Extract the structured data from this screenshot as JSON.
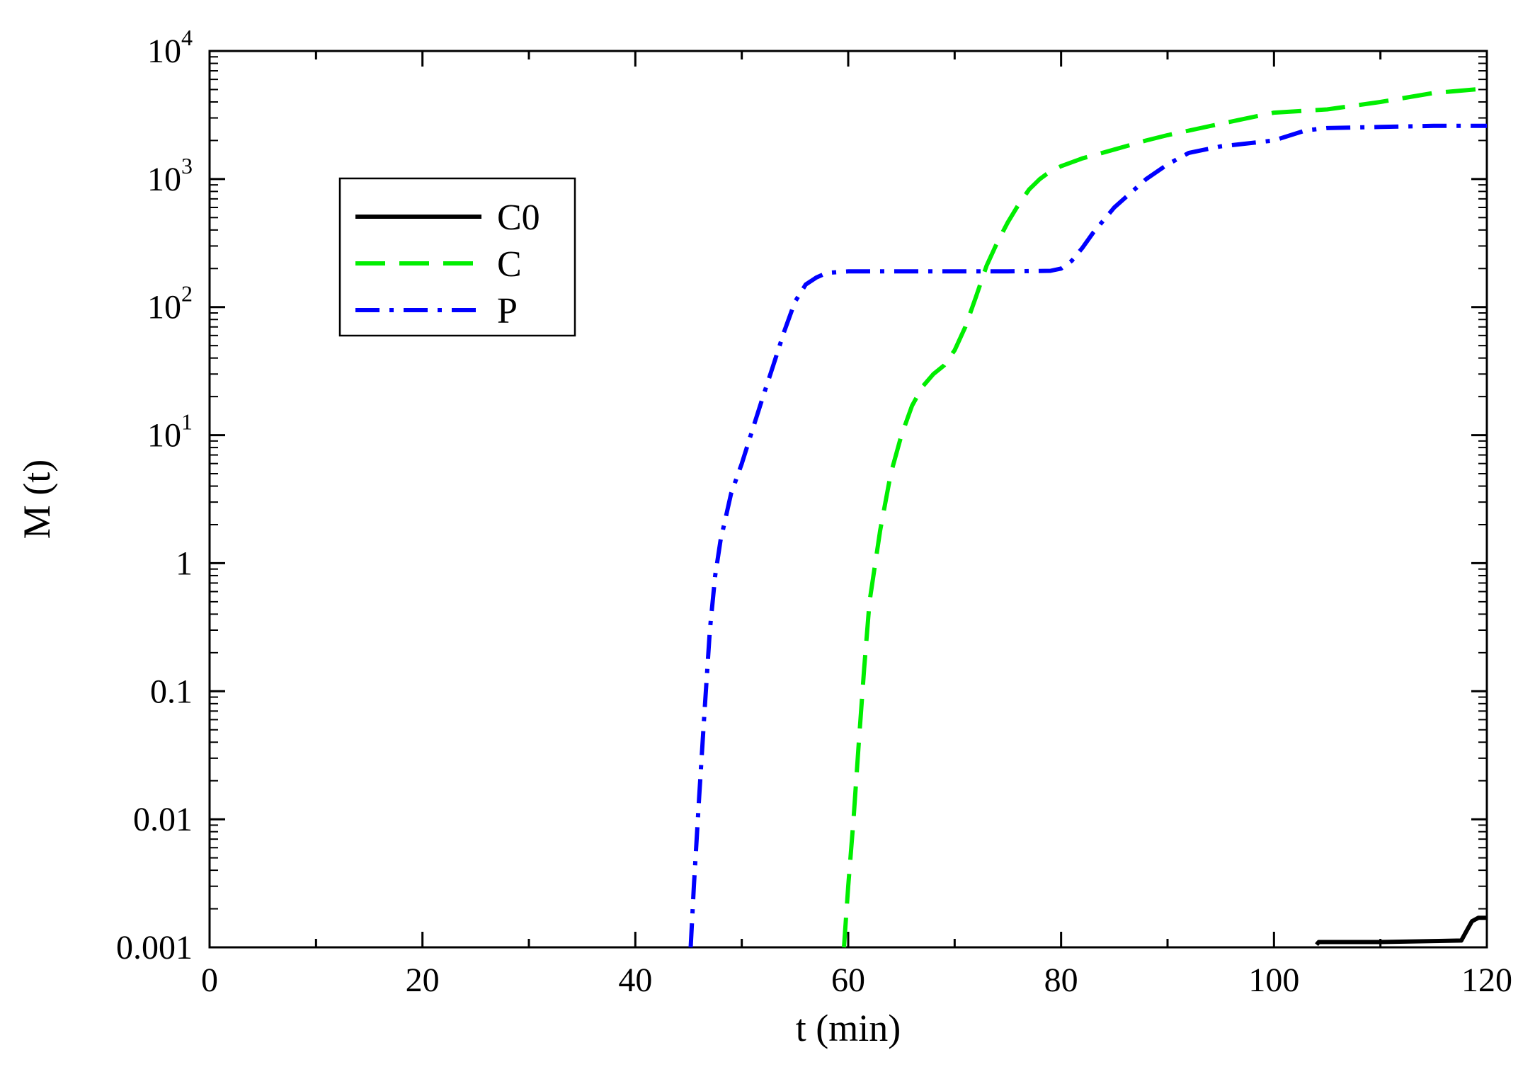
{
  "chart_data": {
    "type": "line",
    "xlabel": "t (min)",
    "ylabel": "M (t)",
    "xlim": [
      0,
      120
    ],
    "ylim": [
      0.001,
      10000
    ],
    "yscale": "log",
    "grid": false,
    "legend_placement": "top-left",
    "x_tick_labels": [
      "0",
      "20",
      "40",
      "60",
      "80",
      "100",
      "120"
    ],
    "x_ticks": [
      0,
      20,
      40,
      60,
      80,
      100,
      120
    ],
    "y_ticks": [
      {
        "value": 0.001,
        "label": "0.001"
      },
      {
        "value": 0.01,
        "label": "0.01"
      },
      {
        "value": 0.1,
        "label": "0.1"
      },
      {
        "value": 1,
        "label": "1"
      },
      {
        "value": 10,
        "base": "10",
        "exp": "1"
      },
      {
        "value": 100,
        "base": "10",
        "exp": "2"
      },
      {
        "value": 1000,
        "base": "10",
        "exp": "3"
      },
      {
        "value": 10000,
        "base": "10",
        "exp": "4"
      }
    ],
    "series": [
      {
        "name": "C0",
        "color": "#000000",
        "style": "solid",
        "x": [
          104,
          104.2,
          110,
          115,
          117.6,
          118,
          118.6,
          119.2,
          120
        ],
        "y": [
          0.00105,
          0.0011,
          0.0011,
          0.00112,
          0.00113,
          0.0013,
          0.0016,
          0.0017,
          0.0017
        ]
      },
      {
        "name": "C",
        "color": "#00ee00",
        "style": "dashed",
        "x": [
          59.6,
          60,
          60.5,
          61,
          61.5,
          62,
          63,
          64,
          65,
          66,
          67,
          68,
          69,
          70,
          71,
          72,
          73,
          74,
          75,
          76,
          77,
          78,
          79,
          80,
          82,
          85,
          88,
          90,
          95,
          100,
          105,
          110,
          115,
          120
        ],
        "y": [
          0.001,
          0.003,
          0.01,
          0.04,
          0.15,
          0.5,
          1.8,
          5,
          10,
          17,
          24,
          30,
          35,
          46,
          70,
          120,
          210,
          320,
          460,
          630,
          830,
          1000,
          1150,
          1260,
          1450,
          1700,
          2000,
          2200,
          2700,
          3300,
          3500,
          4000,
          4700,
          5100
        ]
      },
      {
        "name": "P",
        "color": "#0000ff",
        "style": "dashdot",
        "x": [
          45.2,
          45.5,
          46,
          46.5,
          47,
          47.5,
          48,
          49,
          50,
          51,
          52,
          53,
          54,
          55,
          56,
          57,
          58,
          60,
          65,
          70,
          75,
          79,
          80,
          81,
          82,
          83,
          85,
          88,
          90,
          92,
          95,
          100,
          103,
          105,
          110,
          115,
          120
        ],
        "y": [
          0.001,
          0.003,
          0.015,
          0.07,
          0.3,
          0.8,
          1.5,
          3.5,
          6,
          11,
          20,
          36,
          65,
          110,
          150,
          170,
          185,
          190,
          190,
          190,
          190,
          192,
          200,
          230,
          290,
          380,
          600,
          1000,
          1300,
          1600,
          1800,
          2000,
          2400,
          2500,
          2550,
          2600,
          2600
        ]
      }
    ]
  }
}
